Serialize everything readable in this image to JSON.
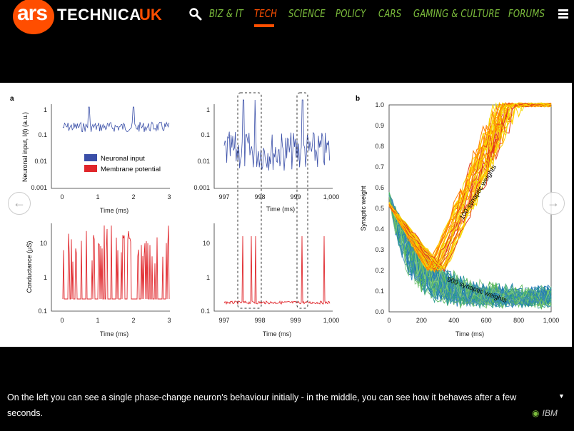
{
  "logo": {
    "ars": "ars",
    "technica": "TECHNICA",
    "uk": "UK"
  },
  "nav": {
    "items": [
      "BIZ & IT",
      "TECH",
      "SCIENCE",
      "POLICY",
      "CARS",
      "GAMING & CULTURE",
      "FORUMS"
    ],
    "active": "TECH"
  },
  "colors": {
    "accent": "#ff4e00",
    "nav_green": "#7cbd3c",
    "series_blue": "#3a4fa8",
    "series_red": "#e0262b"
  },
  "figure": {
    "panel_a": "a",
    "panel_b": "b",
    "legend": {
      "input": "Neuronal input",
      "membrane": "Membrane potential"
    },
    "ylabels": {
      "input": "Neuronal input, I(t) (a.u.)",
      "conductance": "Conductance (μS)",
      "weight": "Synaptic weight"
    },
    "xlabel": "Time (ms)",
    "ticks_left_x": [
      "0",
      "1",
      "2",
      "3"
    ],
    "ticks_mid_x": [
      "997",
      "998",
      "999",
      "1,000"
    ],
    "ticks_input_y": [
      "1",
      "0.1",
      "0.01",
      "0.001"
    ],
    "ticks_cond_y": [
      "10",
      "1",
      "0.1"
    ],
    "ticks_b_x": [
      "0",
      "200",
      "400",
      "600",
      "800",
      "1,000"
    ],
    "ticks_b_y": [
      "1.0",
      "0.9",
      "0.8",
      "0.7",
      "0.6",
      "0.5",
      "0.4",
      "0.3",
      "0.2",
      "0.1",
      "0.0"
    ],
    "annot_100": "100 synaptic weights",
    "annot_900": "900 synaptic weights"
  },
  "caption": {
    "text": "On the left you can see a single phase-change neuron's behaviour initially - in the middle, you can see how it behaves after a few seconds.",
    "credit": "IBM"
  },
  "icons": {
    "search": "search-icon",
    "menu": "hamburger-menu-icon",
    "prev": "arrow-left-icon",
    "next": "arrow-right-icon",
    "camera": "camera-icon",
    "expand": "caret-down-icon"
  }
}
